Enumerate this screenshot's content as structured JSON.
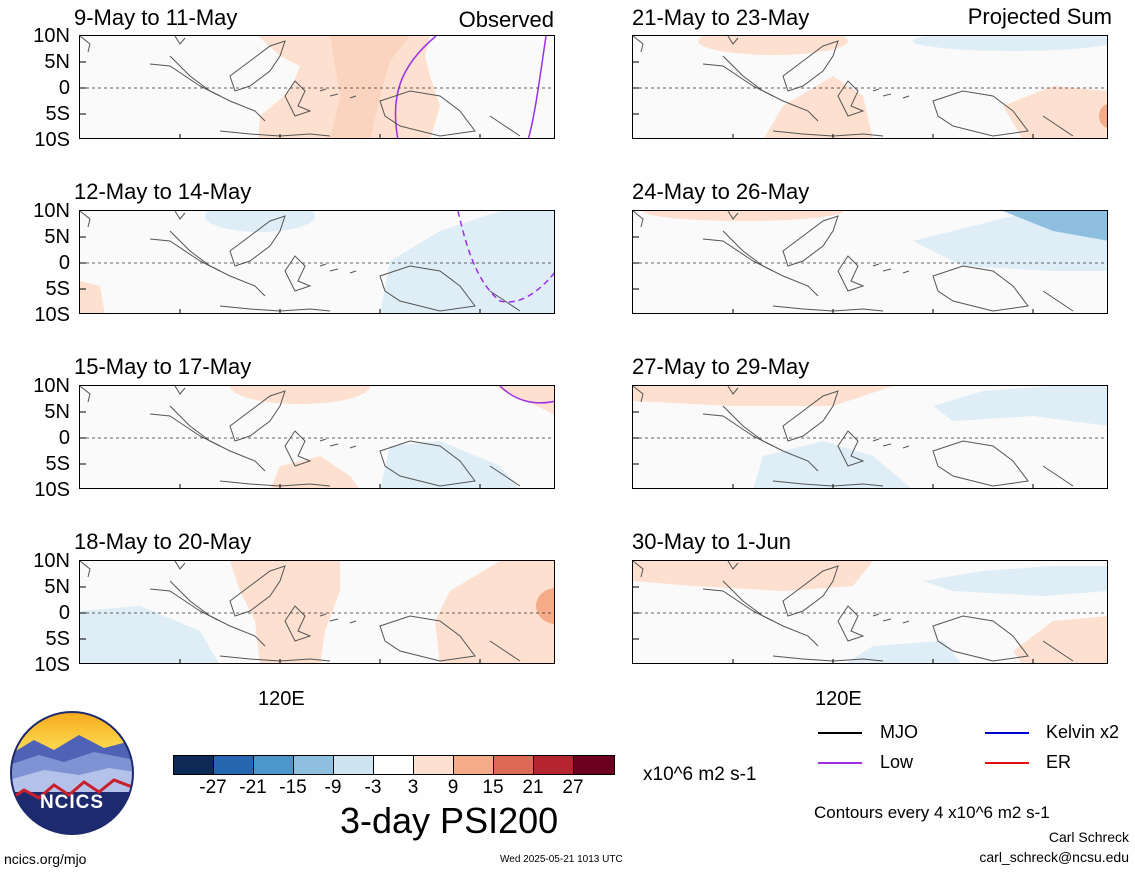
{
  "left_column_header": "Observed",
  "right_column_header": "Projected Sum",
  "panels_left": [
    {
      "title": "9-May to 11-May"
    },
    {
      "title": "12-May to 14-May"
    },
    {
      "title": "15-May to 17-May"
    },
    {
      "title": "18-May to 20-May"
    }
  ],
  "panels_right": [
    {
      "title": "21-May to 23-May"
    },
    {
      "title": "24-May to 26-May"
    },
    {
      "title": "27-May to 29-May"
    },
    {
      "title": "30-May to 1-Jun"
    }
  ],
  "lat_labels": [
    "10N",
    "5N",
    "0",
    "5S",
    "10S"
  ],
  "lon_label": "120E",
  "colorbar": {
    "colors": [
      "#0c2a55",
      "#2566b0",
      "#4b97cc",
      "#8ebfdf",
      "#cfe4f1",
      "#ffffff",
      "#fde0cf",
      "#f5aa88",
      "#dc6a55",
      "#b42530",
      "#6d0020"
    ],
    "ticks": [
      "-27",
      "-21",
      "-15",
      "-9",
      "-3",
      "3",
      "9",
      "15",
      "21",
      "27"
    ],
    "units": "x10^6 m2 s-1",
    "title": "3-day PSI200"
  },
  "legend": [
    {
      "label": "MJO",
      "color": "#000000"
    },
    {
      "label": "Kelvin x2",
      "color": "#0000cc"
    },
    {
      "label": "Low",
      "color": "#9b30e6"
    },
    {
      "label": "ER",
      "color": "#e01010"
    }
  ],
  "contour_note": "Contours every 4 x10^6 m2 s-1",
  "author": "Carl Schreck",
  "email": "carl_schreck@ncsu.edu",
  "site": "ncics.org/mjo",
  "timestamp": "Wed 2025-05-21 1013 UTC",
  "logo_text": "NCICS"
}
